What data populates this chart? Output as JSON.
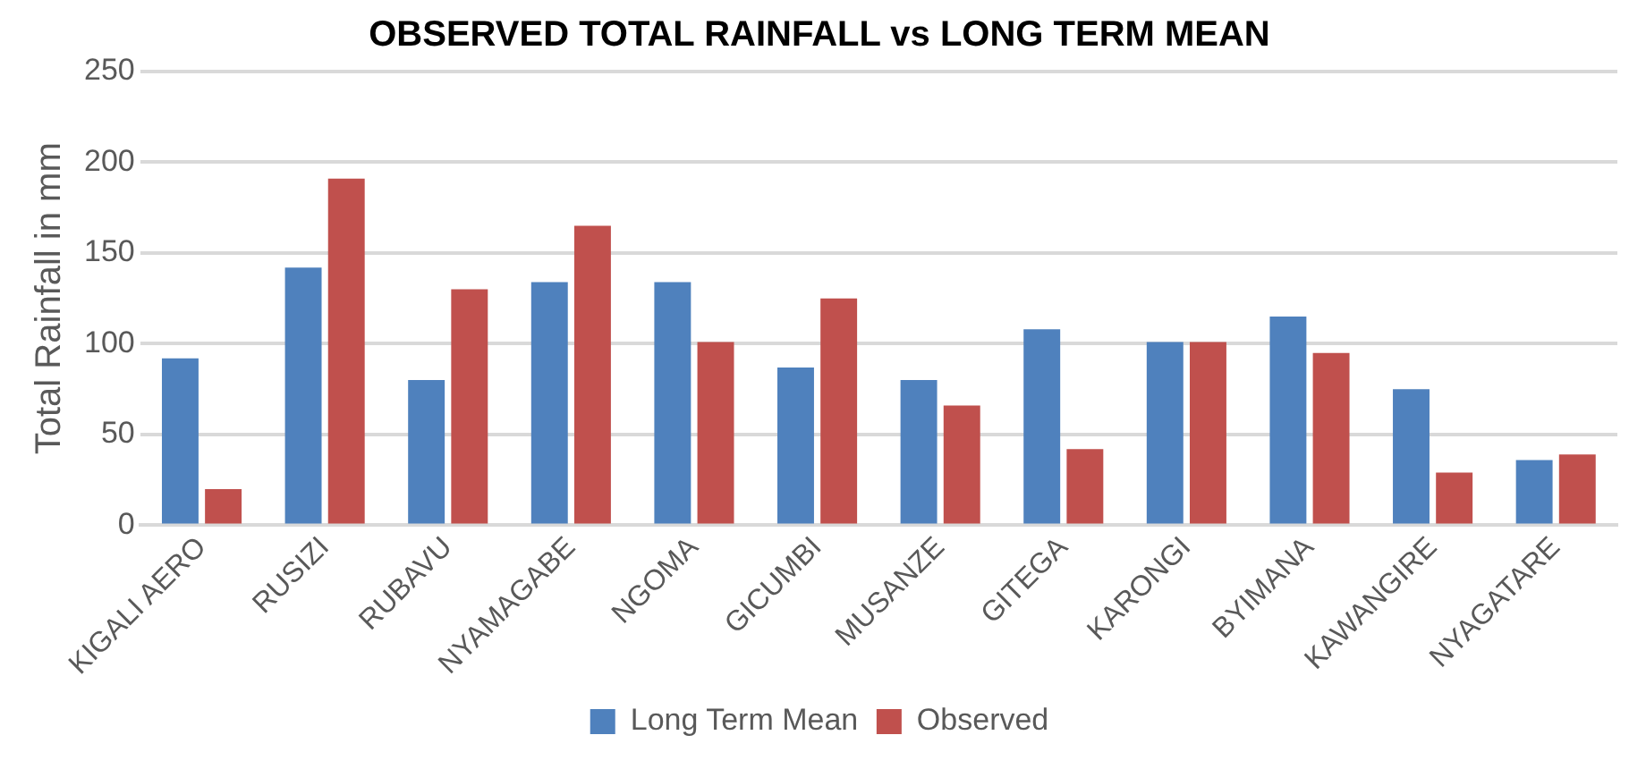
{
  "chart_data": {
    "type": "bar",
    "title": "OBSERVED TOTAL RAINFALL vs LONG TERM MEAN",
    "ylabel": "Total Rainfall in mm",
    "categories": [
      "KIGALI AERO",
      "RUSIZI",
      "RUBAVU",
      "NYAMAGABE",
      "NGOMA",
      "GICUMBI",
      "MUSANZE",
      "GITEGA",
      "KARONGI",
      "BYIMANA",
      "KAWANGIRE",
      "NYAGATARE"
    ],
    "series": [
      {
        "name": "Long Term Mean",
        "color": "#4f81bd",
        "values": [
          92,
          142,
          80,
          134,
          134,
          87,
          80,
          108,
          101,
          115,
          75,
          36
        ]
      },
      {
        "name": "Observed",
        "color": "#c0504d",
        "values": [
          20,
          191,
          130,
          165,
          101,
          125,
          66,
          42,
          101,
          95,
          29,
          39
        ]
      }
    ],
    "ylim": [
      0,
      250
    ],
    "yticks": [
      0,
      50,
      100,
      150,
      200,
      250
    ],
    "grid": "y",
    "legend": "bottom"
  }
}
